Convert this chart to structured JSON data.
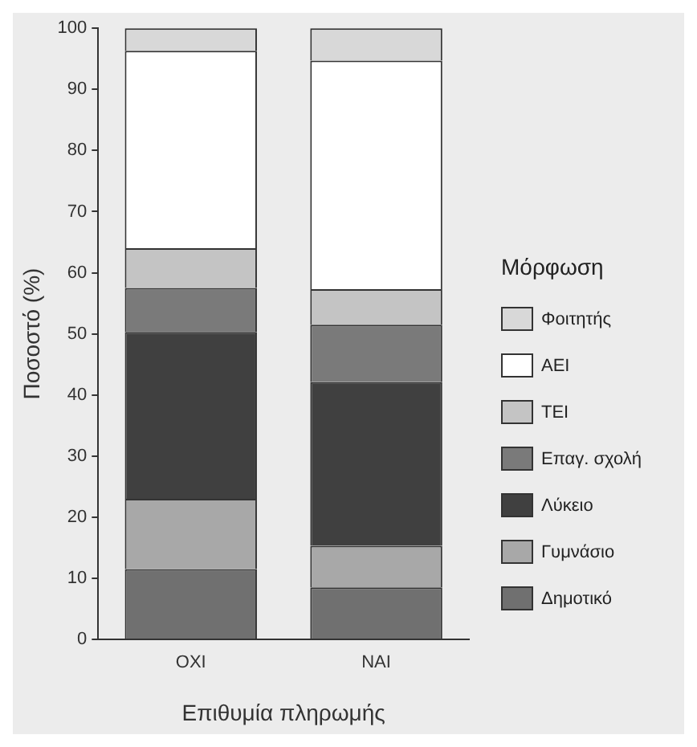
{
  "chart_data": {
    "type": "bar",
    "stacked": true,
    "xlabel": "Επιθυμία πληρωμής",
    "ylabel": "Ποσοστό (%)",
    "legend_title": "Μόρφωση",
    "legend": "right",
    "grid": false,
    "categories": [
      "ΟΧΙ",
      "ΝΑΙ"
    ],
    "ylim": [
      0,
      100
    ],
    "yticks": [
      0,
      10,
      20,
      30,
      40,
      50,
      60,
      70,
      80,
      90,
      100
    ],
    "series": [
      {
        "name": "Δημοτικό",
        "color": "#707070",
        "values": [
          11.5,
          8.5
        ]
      },
      {
        "name": "Γυμνάσιο",
        "color": "#a8a8a8",
        "values": [
          11.5,
          6.8
        ]
      },
      {
        "name": "Λύκειο",
        "color": "#404040",
        "values": [
          27.3,
          26.8
        ]
      },
      {
        "name": "Επαγ. σχολή",
        "color": "#7a7a7a",
        "values": [
          7.2,
          9.4
        ]
      },
      {
        "name": "ΤΕΙ",
        "color": "#c4c4c4",
        "values": [
          6.5,
          5.8
        ]
      },
      {
        "name": "ΑΕΙ",
        "color": "#ffffff",
        "values": [
          32.3,
          37.4
        ]
      },
      {
        "name": "Φοιτητής",
        "color": "#d8d8d8",
        "values": [
          3.7,
          5.3
        ]
      }
    ]
  }
}
